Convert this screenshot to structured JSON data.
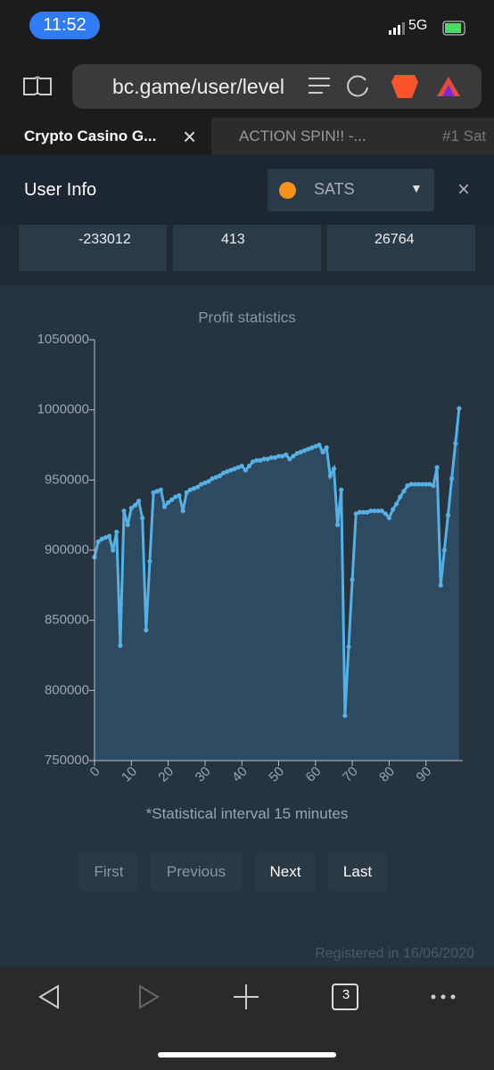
{
  "status": {
    "time": "11:52",
    "network": "5G"
  },
  "browser": {
    "url": "bc.game/user/level",
    "tabs": [
      "Crypto Casino G...",
      "ACTION SPIN!! -...",
      "#1 Sat"
    ],
    "tab_count": "3"
  },
  "modal": {
    "title": "User Info",
    "currency": "SATS",
    "stats": [
      "-233012",
      "413",
      "26764"
    ],
    "note": "*Statistical interval 15 minutes",
    "buttons": [
      "First",
      "Previous",
      "Next",
      "Last"
    ],
    "registered": "Registered in 16/06/2020"
  },
  "chart_data": {
    "type": "area",
    "title": "Profit statistics",
    "color": "#56b0e4",
    "x": [
      0,
      1,
      2,
      3,
      4,
      5,
      6,
      7,
      8,
      9,
      10,
      11,
      12,
      13,
      14,
      15,
      16,
      17,
      18,
      19,
      20,
      21,
      22,
      23,
      24,
      25,
      26,
      27,
      28,
      29,
      30,
      31,
      32,
      33,
      34,
      35,
      36,
      37,
      38,
      39,
      40,
      41,
      42,
      43,
      44,
      45,
      46,
      47,
      48,
      49,
      50,
      51,
      52,
      53,
      54,
      55,
      56,
      57,
      58,
      59,
      60,
      61,
      62,
      63,
      64,
      65,
      66,
      67,
      68,
      69,
      70,
      71,
      72,
      73,
      74,
      75,
      76,
      77,
      78,
      79,
      80,
      81,
      82,
      83,
      84,
      85,
      86,
      87,
      88,
      89,
      90,
      91,
      92,
      93,
      94,
      95,
      96,
      97,
      98,
      99
    ],
    "values": [
      895000,
      906000,
      908000,
      909000,
      910000,
      900000,
      913000,
      832000,
      928000,
      918000,
      930000,
      932000,
      935000,
      923000,
      843000,
      892000,
      941000,
      942000,
      943000,
      931000,
      934000,
      936000,
      938000,
      939000,
      928000,
      941000,
      943000,
      944000,
      945000,
      947000,
      948000,
      949000,
      951000,
      952000,
      953000,
      955000,
      956000,
      957000,
      958000,
      959000,
      960000,
      957000,
      960000,
      963000,
      964000,
      964000,
      965000,
      965000,
      966000,
      966000,
      967000,
      967000,
      968000,
      965000,
      967000,
      969000,
      970000,
      971000,
      972000,
      973000,
      974000,
      975000,
      970000,
      973000,
      953000,
      958000,
      918000,
      943000,
      782000,
      831000,
      879000,
      926000,
      927000,
      927000,
      927000,
      928000,
      928000,
      928000,
      928000,
      926000,
      923000,
      929000,
      933000,
      938000,
      942000,
      946000,
      947000,
      947000,
      947000,
      947000,
      947000,
      947000,
      946000,
      959000,
      875000,
      900000,
      925000,
      951000,
      976000,
      1001000
    ],
    "xlim": [
      0,
      100
    ],
    "xticks": [
      0,
      10,
      20,
      30,
      40,
      50,
      60,
      70,
      80,
      90
    ],
    "ylim": [
      750000,
      1050000
    ],
    "yticks": [
      750000,
      800000,
      850000,
      900000,
      950000,
      1000000,
      1050000
    ]
  }
}
